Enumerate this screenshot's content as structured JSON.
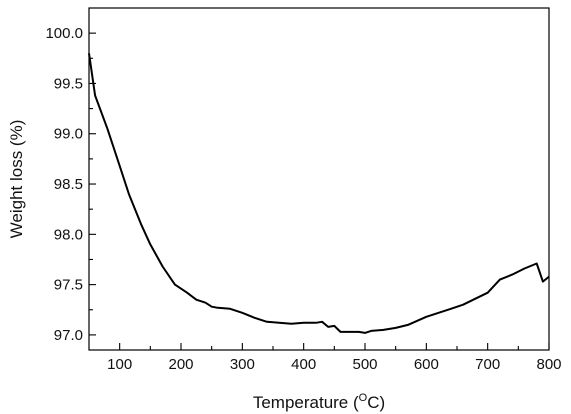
{
  "chart_data": {
    "type": "line",
    "xlabel": "Temperature (",
    "xlabel_sup": "O",
    "xlabel_suffix": "C)",
    "ylabel": "Weight loss (%)",
    "xlim": [
      50,
      800
    ],
    "ylim": [
      96.85,
      100.25
    ],
    "x_ticks": [
      100,
      200,
      300,
      400,
      500,
      600,
      700,
      800
    ],
    "y_ticks": [
      97.0,
      97.5,
      98.0,
      98.5,
      99.0,
      99.5,
      100.0
    ],
    "x_minor_ticks": [
      50,
      150,
      250,
      350,
      450,
      550,
      650,
      750
    ],
    "y_minor_ticks": [
      97.25,
      97.75,
      98.25,
      98.75,
      99.25,
      99.75
    ],
    "grid": false,
    "series": [
      {
        "x": [
          50,
          60,
          80,
          100,
          115,
          135,
          150,
          170,
          190,
          210,
          225,
          240,
          250,
          260,
          280,
          300,
          320,
          340,
          360,
          380,
          400,
          420,
          430,
          440,
          450,
          460,
          480,
          490,
          500,
          510,
          530,
          550,
          570,
          600,
          620,
          640,
          660,
          680,
          700,
          720,
          740,
          760,
          780,
          790,
          800
        ],
        "y": [
          99.8,
          99.38,
          99.05,
          98.68,
          98.4,
          98.1,
          97.9,
          97.68,
          97.5,
          97.42,
          97.35,
          97.32,
          97.28,
          97.27,
          97.26,
          97.22,
          97.17,
          97.13,
          97.12,
          97.11,
          97.12,
          97.12,
          97.13,
          97.08,
          97.09,
          97.03,
          97.03,
          97.03,
          97.02,
          97.04,
          97.05,
          97.07,
          97.1,
          97.18,
          97.22,
          97.26,
          97.3,
          97.36,
          97.42,
          97.55,
          97.6,
          97.66,
          97.71,
          97.53,
          97.58
        ]
      }
    ]
  }
}
